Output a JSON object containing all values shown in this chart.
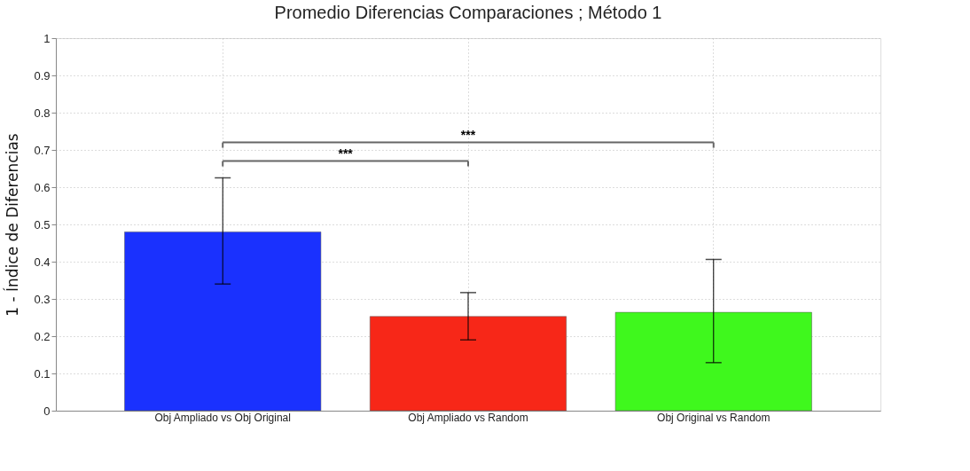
{
  "chart_data": {
    "type": "bar",
    "title": "Promedio Diferencias Comparaciones ; Método 1",
    "ylabel": "1 - Índice de Diferencias",
    "categories": [
      "Obj Ampliado vs Obj Original",
      "Obj Ampliado vs Random",
      "Obj Original vs Random"
    ],
    "values": [
      0.48,
      0.253,
      0.264
    ],
    "colors": [
      "#1a31fe",
      "#f72718",
      "#3ff81d"
    ],
    "errors": [
      [
        0.34,
        0.625
      ],
      [
        0.19,
        0.317
      ],
      [
        0.129,
        0.406
      ]
    ],
    "ylim": [
      0,
      1
    ],
    "yticks": [
      0,
      0.1,
      0.2,
      0.3,
      0.4,
      0.5,
      0.6,
      0.7,
      0.8,
      0.9,
      1
    ],
    "annotations": [
      "***",
      "***"
    ],
    "grid": true
  }
}
